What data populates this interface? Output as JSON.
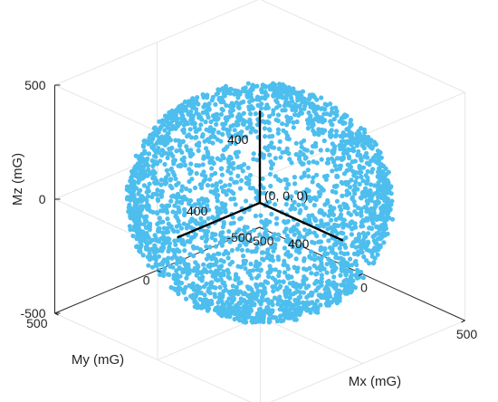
{
  "chart_data": {
    "type": "scatter",
    "projection": "3d",
    "title": "",
    "xlabel": "Mx (mG)",
    "ylabel": "My (mG)",
    "zlabel": "Mz (mG)",
    "xlim": [
      -500,
      500
    ],
    "ylim": [
      -500,
      500
    ],
    "zlim": [
      -500,
      500
    ],
    "xticks": [
      -500,
      0,
      500
    ],
    "yticks": [
      -500,
      0,
      500
    ],
    "zticks": [
      -500,
      0,
      500
    ],
    "grid": true,
    "marker_color": "#4DBEEE",
    "series": [
      {
        "shape": "sphere",
        "center": [
          0,
          0,
          0
        ],
        "radius_mG": 450,
        "point_count": 3000
      }
    ],
    "annotations": {
      "origin": "(0, 0, 0)",
      "ref_length": 400,
      "ref_x_label": "400",
      "ref_y_label": "400",
      "ref_z_label": "400"
    }
  }
}
